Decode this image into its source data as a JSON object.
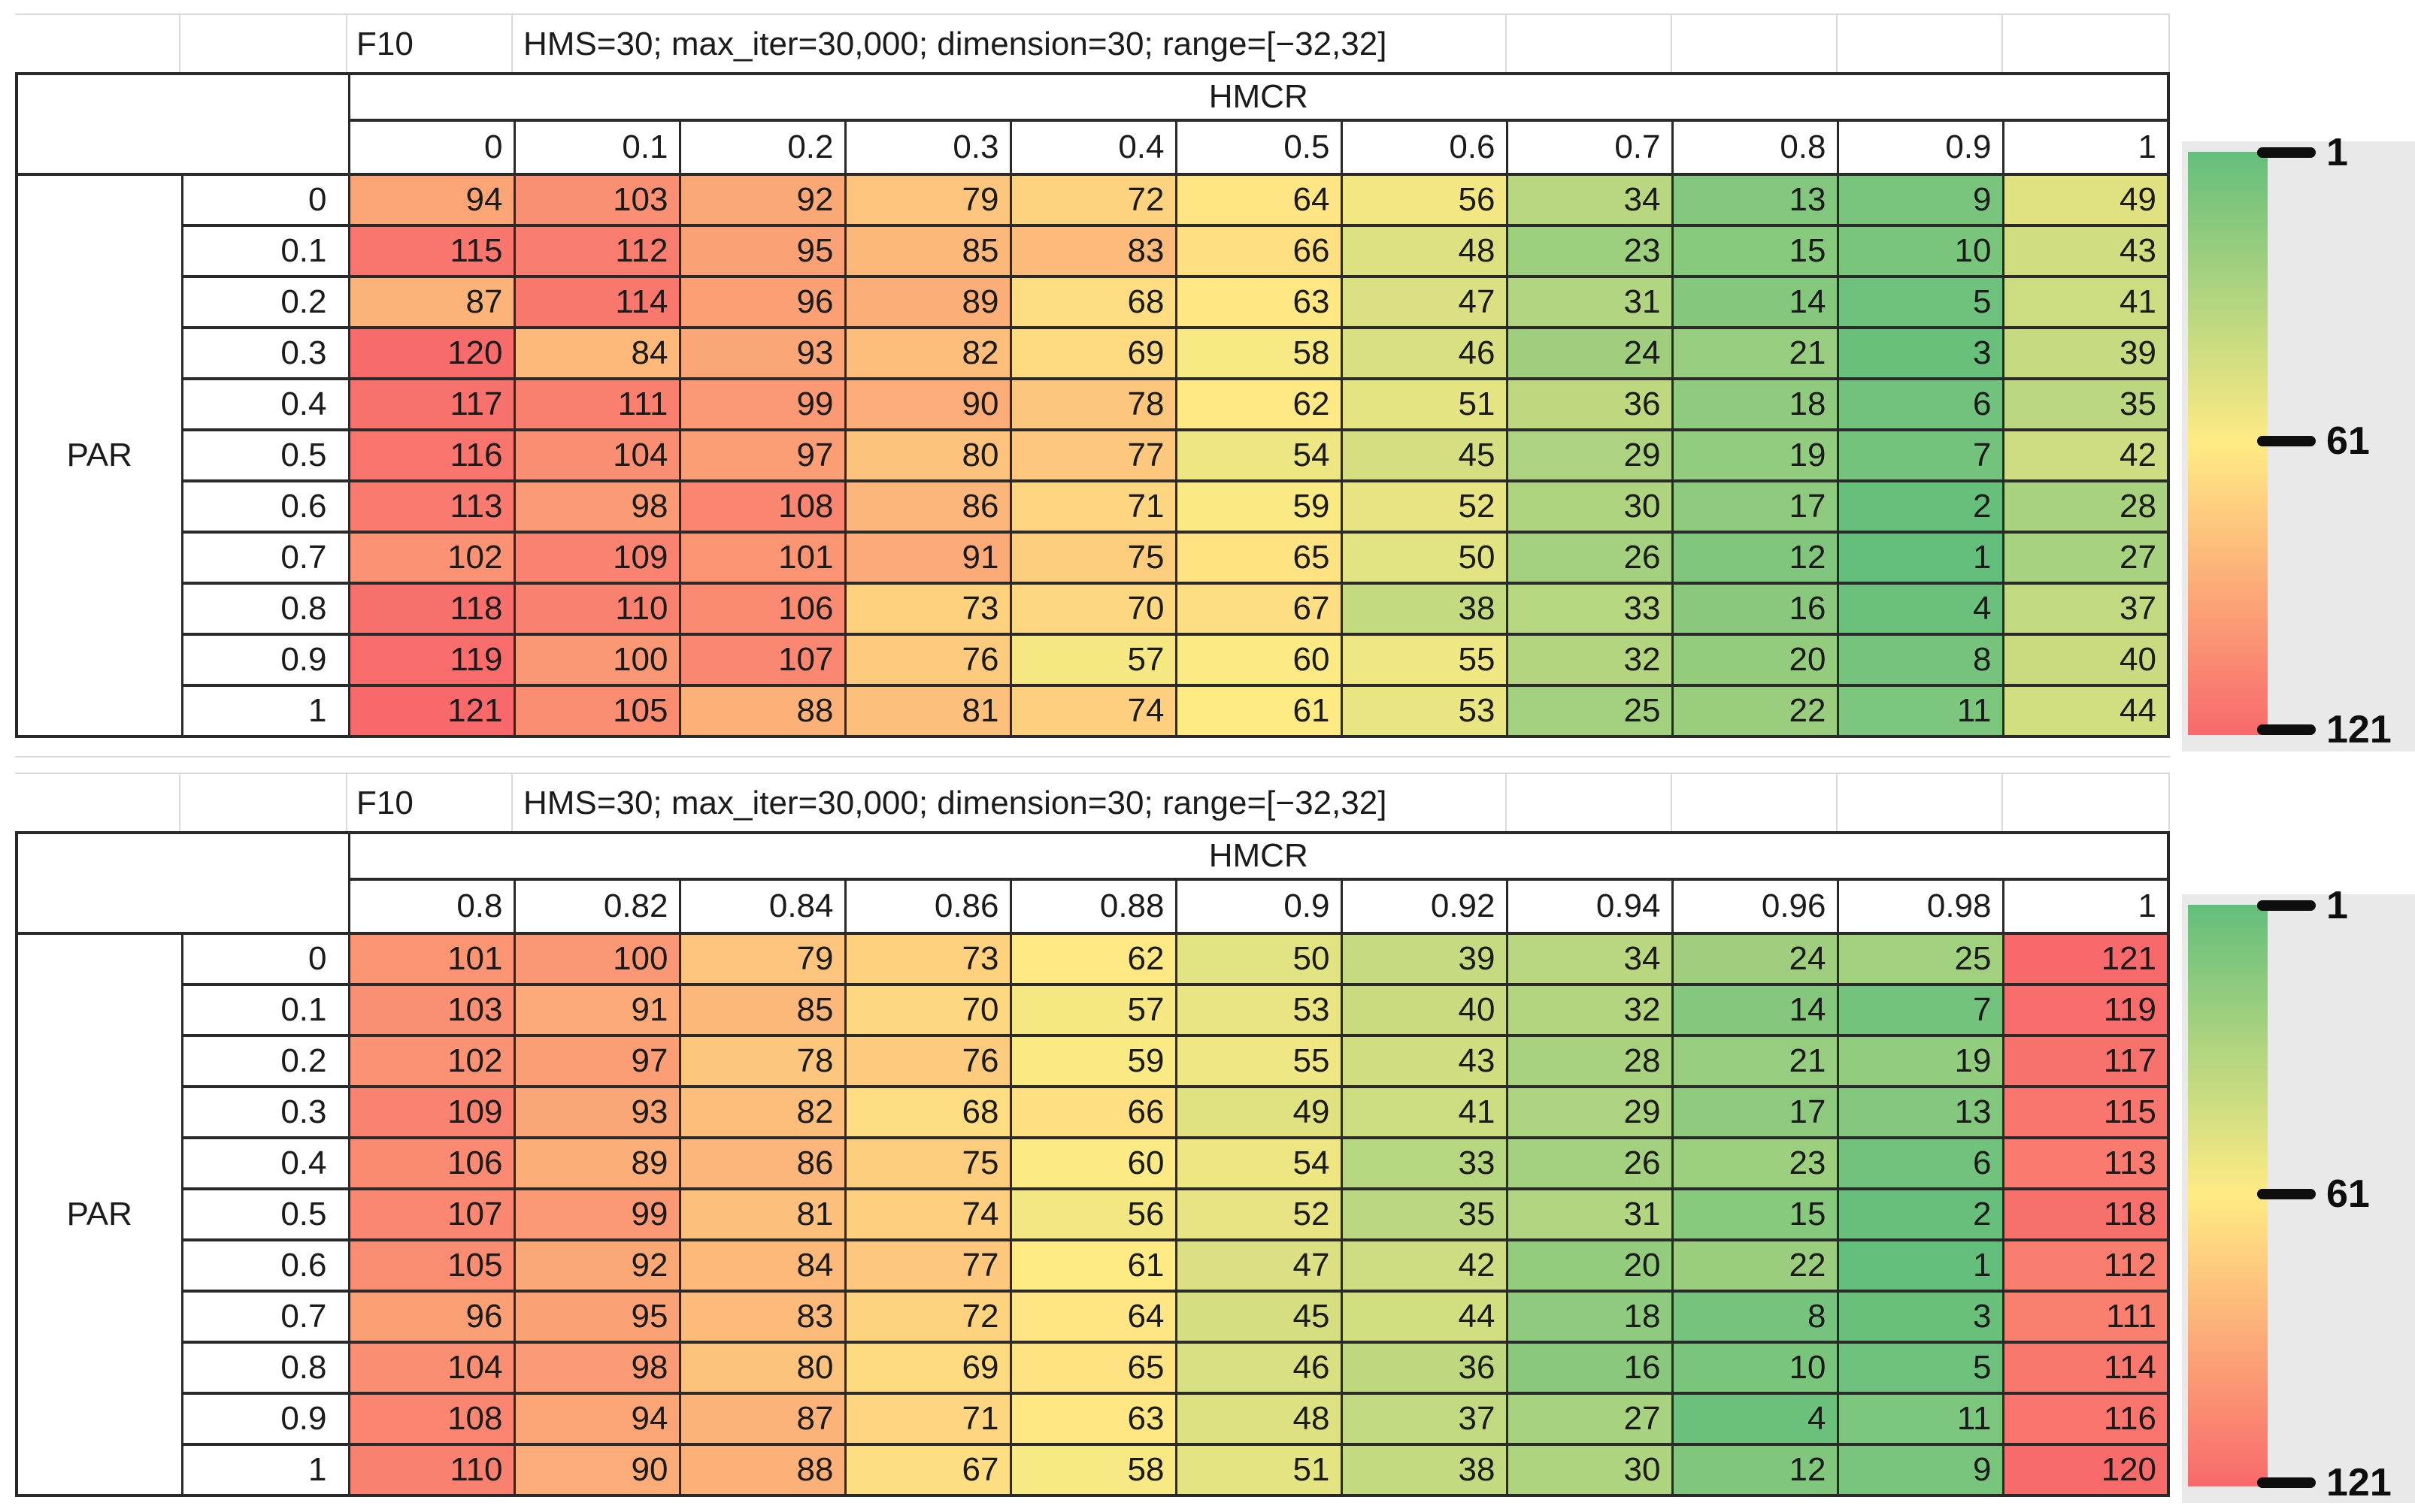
{
  "chart_data": [
    {
      "type": "heatmap",
      "panel_label": "F10",
      "subtitle": "HMS=30; max_iter=30,000; dimension=30; range=[−32,32]",
      "xlabel": "HMCR",
      "ylabel": "PAR",
      "x_ticks": [
        "0",
        "0.1",
        "0.2",
        "0.3",
        "0.4",
        "0.5",
        "0.6",
        "0.7",
        "0.8",
        "0.9",
        "1"
      ],
      "y_ticks": [
        "0",
        "0.1",
        "0.2",
        "0.3",
        "0.4",
        "0.5",
        "0.6",
        "0.7",
        "0.8",
        "0.9",
        "1"
      ],
      "values": [
        [
          94,
          103,
          92,
          79,
          72,
          64,
          56,
          34,
          13,
          9,
          49
        ],
        [
          115,
          112,
          95,
          85,
          83,
          66,
          48,
          23,
          15,
          10,
          43
        ],
        [
          87,
          114,
          96,
          89,
          68,
          63,
          47,
          31,
          14,
          5,
          41
        ],
        [
          120,
          84,
          93,
          82,
          69,
          58,
          46,
          24,
          21,
          3,
          39
        ],
        [
          117,
          111,
          99,
          90,
          78,
          62,
          51,
          36,
          18,
          6,
          35
        ],
        [
          116,
          104,
          97,
          80,
          77,
          54,
          45,
          29,
          19,
          7,
          42
        ],
        [
          113,
          98,
          108,
          86,
          71,
          59,
          52,
          30,
          17,
          2,
          28
        ],
        [
          102,
          109,
          101,
          91,
          75,
          65,
          50,
          26,
          12,
          1,
          27
        ],
        [
          118,
          110,
          106,
          73,
          70,
          67,
          38,
          33,
          16,
          4,
          37
        ],
        [
          119,
          100,
          107,
          76,
          57,
          60,
          55,
          32,
          20,
          8,
          40
        ],
        [
          121,
          105,
          88,
          81,
          74,
          61,
          53,
          25,
          22,
          11,
          44
        ]
      ],
      "colorbar": {
        "orientation": "vertical",
        "tick_labels": [
          "1",
          "61",
          "121"
        ],
        "min_value": 1,
        "mid_value": 61,
        "max_value": 121,
        "min_color": "#63BE7B",
        "mid_color": "#FFEB84",
        "max_color": "#F8696B",
        "low_at": "top",
        "high_at": "bottom"
      }
    },
    {
      "type": "heatmap",
      "panel_label": "F10",
      "subtitle": "HMS=30; max_iter=30,000; dimension=30; range=[−32,32]",
      "xlabel": "HMCR",
      "ylabel": "PAR",
      "x_ticks": [
        "0.8",
        "0.82",
        "0.84",
        "0.86",
        "0.88",
        "0.9",
        "0.92",
        "0.94",
        "0.96",
        "0.98",
        "1"
      ],
      "y_ticks": [
        "0",
        "0.1",
        "0.2",
        "0.3",
        "0.4",
        "0.5",
        "0.6",
        "0.7",
        "0.8",
        "0.9",
        "1"
      ],
      "values": [
        [
          101,
          100,
          79,
          73,
          62,
          50,
          39,
          34,
          24,
          25,
          121
        ],
        [
          103,
          91,
          85,
          70,
          57,
          53,
          40,
          32,
          14,
          7,
          119
        ],
        [
          102,
          97,
          78,
          76,
          59,
          55,
          43,
          28,
          21,
          19,
          117
        ],
        [
          109,
          93,
          82,
          68,
          66,
          49,
          41,
          29,
          17,
          13,
          115
        ],
        [
          106,
          89,
          86,
          75,
          60,
          54,
          33,
          26,
          23,
          6,
          113
        ],
        [
          107,
          99,
          81,
          74,
          56,
          52,
          35,
          31,
          15,
          2,
          118
        ],
        [
          105,
          92,
          84,
          77,
          61,
          47,
          42,
          20,
          22,
          1,
          112
        ],
        [
          96,
          95,
          83,
          72,
          64,
          45,
          44,
          18,
          8,
          3,
          111
        ],
        [
          104,
          98,
          80,
          69,
          65,
          46,
          36,
          16,
          10,
          5,
          114
        ],
        [
          108,
          94,
          87,
          71,
          63,
          48,
          37,
          27,
          4,
          11,
          116
        ],
        [
          110,
          90,
          88,
          67,
          58,
          51,
          38,
          30,
          12,
          9,
          120
        ]
      ],
      "colorbar": {
        "orientation": "vertical",
        "tick_labels": [
          "1",
          "61",
          "121"
        ],
        "min_value": 1,
        "mid_value": 61,
        "max_value": 121,
        "min_color": "#63BE7B",
        "mid_color": "#FFEB84",
        "max_color": "#F8696B",
        "low_at": "top",
        "high_at": "bottom"
      }
    }
  ]
}
